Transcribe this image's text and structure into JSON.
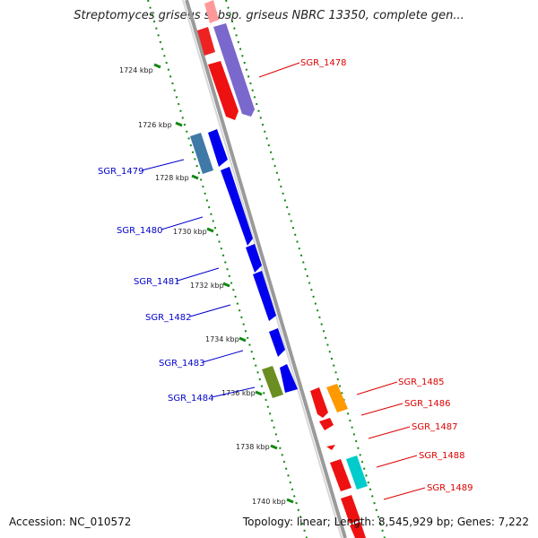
{
  "title": "Streptomyces griseus subsp. griseus NBRC 13350, complete gen...",
  "footer": {
    "accession": "Accession: NC_010572",
    "summary": "Topology: linear; Length: 8,545,929 bp; Genes: 7,222"
  },
  "kbp_labels": [
    "1724 kbp",
    "1726 kbp",
    "1728 kbp",
    "1730 kbp",
    "1732 kbp",
    "1734 kbp",
    "1736 kbp",
    "1738 kbp",
    "1740 kbp"
  ],
  "genes_left": [
    "SGR_1479",
    "SGR_1480",
    "SGR_1481",
    "SGR_1482",
    "SGR_1483",
    "SGR_1484"
  ],
  "genes_right": [
    "SGR_1478",
    "SGR_1485",
    "SGR_1486",
    "SGR_1487",
    "SGR_1488",
    "SGR_1489"
  ],
  "colors": {
    "forward_strand": "#0000ee",
    "reverse_strand": "#ee0000",
    "backbone": "#888888",
    "tick": "#118811",
    "purple": "#7b68cc",
    "steel_blue": "#3f79a8",
    "olive": "#6b8e23",
    "orange": "#ff9900",
    "cyan": "#00cccc"
  }
}
